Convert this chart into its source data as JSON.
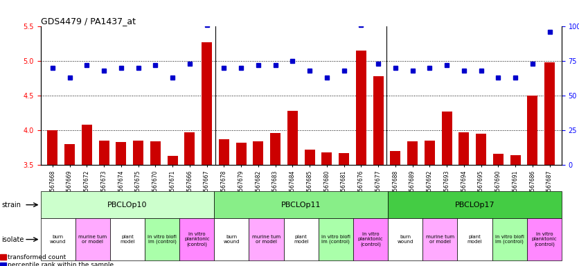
{
  "title": "GDS4479 / PA1437_at",
  "gsm_labels": [
    "GSM567668",
    "GSM567669",
    "GSM567672",
    "GSM567673",
    "GSM567674",
    "GSM567675",
    "GSM567670",
    "GSM567671",
    "GSM567666",
    "GSM567667",
    "GSM567678",
    "GSM567679",
    "GSM567682",
    "GSM567683",
    "GSM567684",
    "GSM567685",
    "GSM567680",
    "GSM567681",
    "GSM567676",
    "GSM567677",
    "GSM567688",
    "GSM567689",
    "GSM567692",
    "GSM567693",
    "GSM567694",
    "GSM567695",
    "GSM567690",
    "GSM567691",
    "GSM567686",
    "GSM567687"
  ],
  "transformed_count": [
    4.0,
    3.8,
    4.08,
    3.85,
    3.83,
    3.85,
    3.84,
    3.63,
    3.97,
    5.27,
    3.87,
    3.82,
    3.84,
    3.96,
    4.28,
    3.72,
    3.68,
    3.67,
    5.15,
    4.78,
    3.7,
    3.84,
    3.85,
    4.27,
    3.97,
    3.95,
    3.66,
    3.64,
    4.5,
    4.98
  ],
  "percentile_rank": [
    70,
    63,
    72,
    68,
    70,
    70,
    72,
    63,
    73,
    101,
    70,
    70,
    72,
    72,
    75,
    68,
    63,
    68,
    101,
    73,
    70,
    68,
    70,
    72,
    68,
    68,
    63,
    63,
    73,
    96
  ],
  "ylim_left": [
    3.5,
    5.5
  ],
  "ylim_right": [
    0,
    100
  ],
  "yticks_left": [
    3.5,
    4.0,
    4.5,
    5.0,
    5.5
  ],
  "yticks_right": [
    0,
    25,
    50,
    75,
    100
  ],
  "bar_color": "#cc0000",
  "dot_color": "#0000cc",
  "strain_groups": [
    {
      "label": "PBCLOp10",
      "start": 0,
      "end": 9,
      "color": "#ccffcc"
    },
    {
      "label": "PBCLOp11",
      "start": 10,
      "end": 19,
      "color": "#88ee88"
    },
    {
      "label": "PBCLOp17",
      "start": 20,
      "end": 29,
      "color": "#44cc44"
    }
  ],
  "isolate_groups": [
    {
      "label": "burn\nwound",
      "indices": [
        0,
        1
      ],
      "color": "#ffffff"
    },
    {
      "label": "murine tum\nor model",
      "indices": [
        2,
        3
      ],
      "color": "#ffaaff"
    },
    {
      "label": "plant\nmodel",
      "indices": [
        4,
        5
      ],
      "color": "#ffffff"
    },
    {
      "label": "in vitro biofi\nlm (control)",
      "indices": [
        6,
        7
      ],
      "color": "#aaffaa"
    },
    {
      "label": "in vitro\nplanktonic\n(control)",
      "indices": [
        8,
        9
      ],
      "color": "#ff88ff"
    },
    {
      "label": "burn\nwound",
      "indices": [
        10,
        11
      ],
      "color": "#ffffff"
    },
    {
      "label": "murine tum\nor model",
      "indices": [
        12,
        13
      ],
      "color": "#ffaaff"
    },
    {
      "label": "plant\nmodel",
      "indices": [
        14,
        15
      ],
      "color": "#ffffff"
    },
    {
      "label": "in vitro biofi\nlm (control)",
      "indices": [
        16,
        17
      ],
      "color": "#aaffaa"
    },
    {
      "label": "in vitro\nplanktonic\n(control)",
      "indices": [
        18,
        19
      ],
      "color": "#ff88ff"
    },
    {
      "label": "burn\nwound",
      "indices": [
        20,
        21
      ],
      "color": "#ffffff"
    },
    {
      "label": "murine tum\nor model",
      "indices": [
        22,
        23
      ],
      "color": "#ffaaff"
    },
    {
      "label": "plant\nmodel",
      "indices": [
        24,
        25
      ],
      "color": "#ffffff"
    },
    {
      "label": "in vitro biofi\nlm (control)",
      "indices": [
        26,
        27
      ],
      "color": "#aaffaa"
    },
    {
      "label": "in vitro\nplanktonic\n(control)",
      "indices": [
        28,
        29
      ],
      "color": "#ff88ff"
    }
  ],
  "legend_items": [
    {
      "label": "transformed count",
      "color": "#cc0000",
      "marker": "s"
    },
    {
      "label": "percentile rank within the sample",
      "color": "#0000cc",
      "marker": "s"
    }
  ]
}
